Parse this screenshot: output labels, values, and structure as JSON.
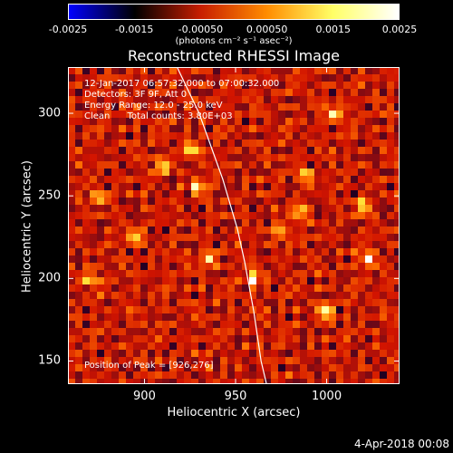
{
  "chart_data": {
    "type": "heatmap",
    "title": "Reconstructed RHESSI Image",
    "xlabel": "Heliocentric X (arcsec)",
    "ylabel": "Heliocentric Y (arcsec)",
    "xlim": [
      858,
      1040
    ],
    "ylim": [
      136,
      328
    ],
    "x_ticks": [
      "900",
      "950",
      "1000"
    ],
    "x_tick_values": [
      900,
      950,
      1000
    ],
    "y_ticks": [
      "150",
      "200",
      "250",
      "300"
    ],
    "y_tick_values": [
      150,
      200,
      250,
      300
    ],
    "colorbar": {
      "ticks": [
        "-0.0025",
        "-0.0015",
        "-0.00050",
        "0.00050",
        "0.0015",
        "0.0025"
      ],
      "tick_values": [
        -0.0025,
        -0.0015,
        -0.0005,
        0.0005,
        0.0015,
        0.0025
      ],
      "range": [
        -0.0025,
        0.0025
      ],
      "unit": "(photons cm⁻² s⁻¹ asec⁻²)",
      "colormap": [
        "#0000ff",
        "#000000",
        "#c81e00",
        "#ff8c00",
        "#ffff66",
        "#ffffff"
      ]
    },
    "annotations": {
      "time": "12-Jan-2017 06:57:32.000 to 07:00:32.000",
      "detectors": "Detectors: 3F 9F, Att 0",
      "energy": "Energy Range: 12.0 - 25.0 keV",
      "method": "Clean      Total counts: 3.80E+03",
      "peak": "Position of Peak = [926,276]"
    },
    "peak_position": [
      926,
      276
    ],
    "bright_spots": [
      {
        "x": 925,
        "y": 278
      },
      {
        "x": 910,
        "y": 268
      },
      {
        "x": 988,
        "y": 262
      },
      {
        "x": 985,
        "y": 240
      },
      {
        "x": 1020,
        "y": 243
      },
      {
        "x": 975,
        "y": 228
      },
      {
        "x": 935,
        "y": 212
      },
      {
        "x": 895,
        "y": 225
      },
      {
        "x": 1005,
        "y": 300
      },
      {
        "x": 930,
        "y": 255
      },
      {
        "x": 1022,
        "y": 212
      },
      {
        "x": 875,
        "y": 250
      },
      {
        "x": 960,
        "y": 200
      },
      {
        "x": 1000,
        "y": 180
      },
      {
        "x": 870,
        "y": 200
      }
    ],
    "limb_curve": [
      [
        917,
        330
      ],
      [
        930,
        300
      ],
      [
        943,
        260
      ],
      [
        951,
        230
      ],
      [
        955,
        210
      ],
      [
        960,
        180
      ],
      [
        964,
        150
      ],
      [
        967,
        136
      ]
    ]
  },
  "date_stamp": "4-Apr-2018 00:08"
}
